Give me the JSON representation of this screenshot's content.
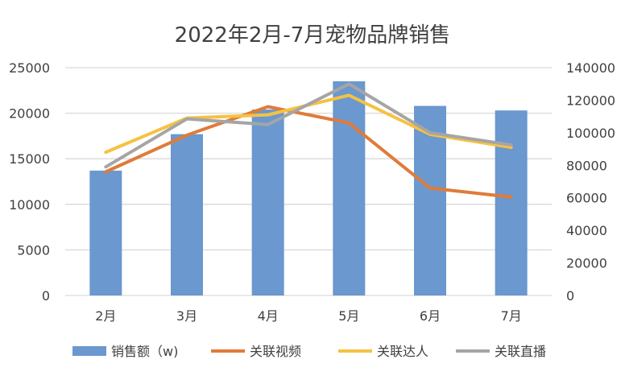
{
  "chart_data": {
    "type": "bar+line",
    "title": "2022年2月-7月宠物品牌销售",
    "categories": [
      "2月",
      "3月",
      "4月",
      "5月",
      "6月",
      "7月"
    ],
    "y_left": {
      "range": [
        0,
        25000
      ],
      "ticks": [
        "0",
        "5000",
        "10000",
        "15000",
        "20000",
        "25000"
      ]
    },
    "y_right": {
      "range": [
        0,
        140000
      ],
      "ticks": [
        "0",
        "20000",
        "40000",
        "60000",
        "80000",
        "100000",
        "120000",
        "140000"
      ]
    },
    "grid": true,
    "legend_position": "bottom",
    "series": [
      {
        "name": "销售额（w)",
        "type": "bar",
        "axis": "left",
        "color": "#6a98cf",
        "values": [
          13700,
          17700,
          20400,
          23500,
          20800,
          20300
        ]
      },
      {
        "name": "关联视频",
        "type": "line",
        "axis": "right",
        "color": "#e07b39",
        "values": [
          76000,
          98500,
          116000,
          106000,
          66000,
          60500
        ]
      },
      {
        "name": "关联达人",
        "type": "line",
        "axis": "right",
        "color": "#f5c242",
        "values": [
          88000,
          109000,
          111000,
          123000,
          99000,
          91000
        ]
      },
      {
        "name": "关联直播",
        "type": "line",
        "axis": "right",
        "color": "#a5a5a5",
        "values": [
          79000,
          108500,
          105000,
          130000,
          100000,
          92500
        ]
      }
    ]
  }
}
